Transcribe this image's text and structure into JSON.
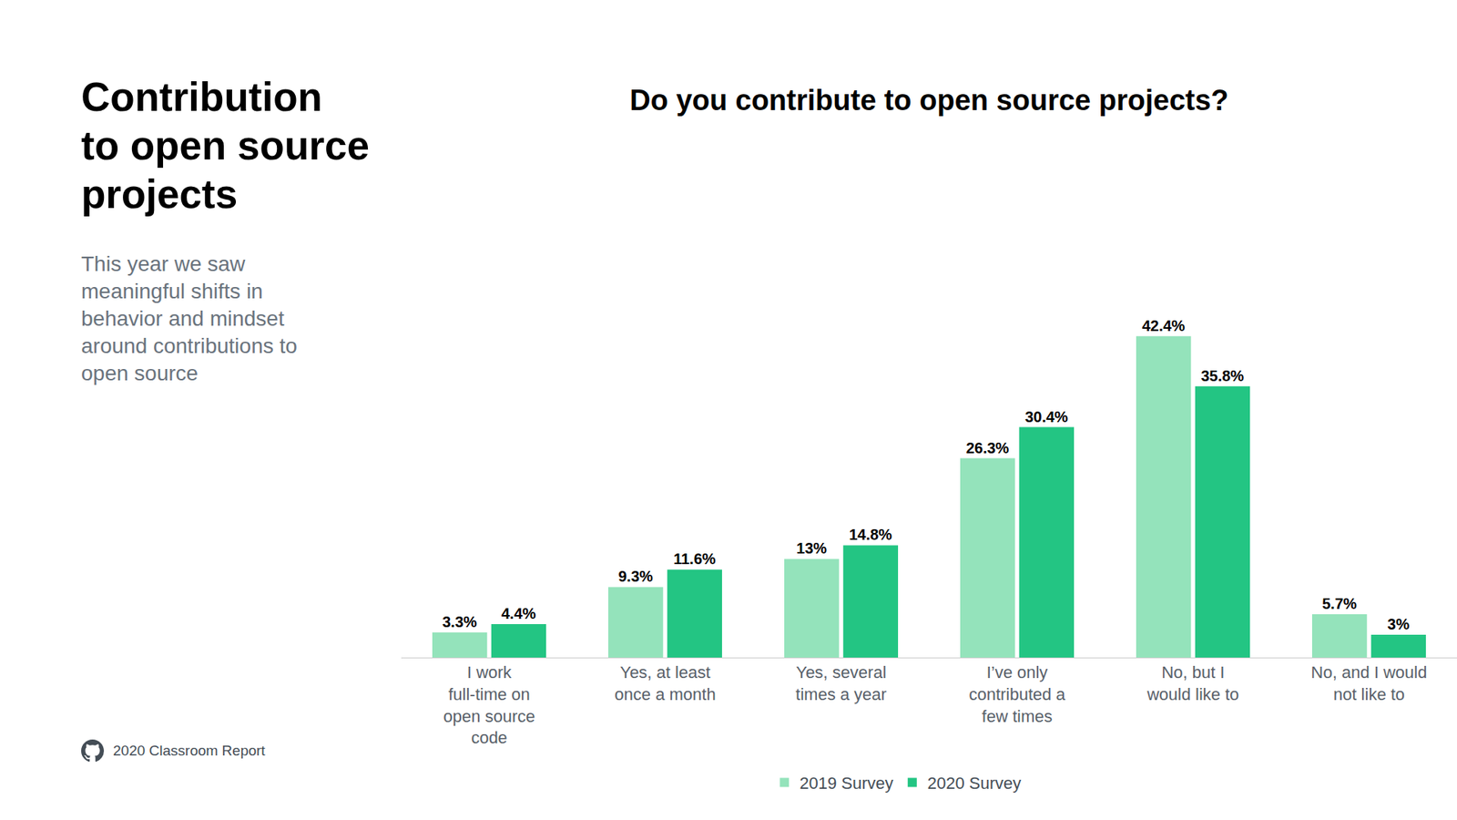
{
  "header": {
    "title": "Contribution\nto open source\nprojects",
    "description": "This year we saw\nmeaningful shifts in\nbehavior and mindset\naround contributions to\nopen source"
  },
  "footer": "2020 Classroom Report",
  "chart_data": {
    "type": "bar",
    "title": "Do you contribute to open source projects?",
    "categories": [
      "I work\nfull-time on\nopen source\ncode",
      "Yes, at least\nonce a month",
      "Yes, several\ntimes a year",
      "I’ve only\ncontributed a\nfew times",
      "No, but I\nwould like to",
      "No, and I would\nnot like to"
    ],
    "series": [
      {
        "name": "2019 Survey",
        "color": "#94e3bb",
        "values": [
          3.3,
          9.3,
          13,
          26.3,
          42.4,
          5.7
        ],
        "value_labels": [
          "3.3%",
          "9.3%",
          "13%",
          "26.3%",
          "42.4%",
          "5.7%"
        ]
      },
      {
        "name": "2020 Survey",
        "color": "#23c583",
        "values": [
          4.4,
          11.6,
          14.8,
          30.4,
          35.8,
          3
        ],
        "value_labels": [
          "4.4%",
          "11.6%",
          "14.8%",
          "30.4%",
          "35.8%",
          "3%"
        ]
      }
    ],
    "ylim": [
      0,
      50
    ],
    "yticks": [],
    "grid": false,
    "tick_labels": "x",
    "data_labels": true,
    "legend": "bottom"
  }
}
